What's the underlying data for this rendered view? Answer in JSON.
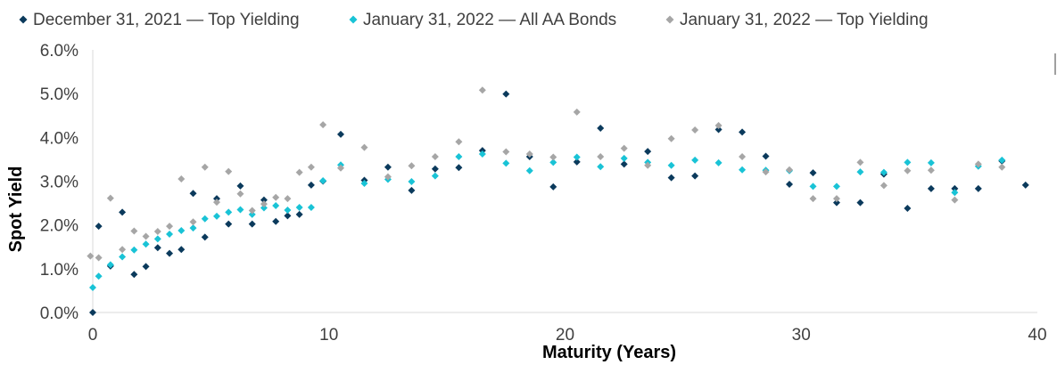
{
  "chart_data": {
    "type": "scatter",
    "title": "",
    "xlabel": "Maturity (Years)",
    "ylabel": "Spot Yield",
    "xlim": [
      0,
      40
    ],
    "ylim": [
      0,
      6
    ],
    "x_ticks": [
      "0",
      "10",
      "20",
      "30",
      "40"
    ],
    "y_ticks": [
      "0.0%",
      "1.0%",
      "2.0%",
      "3.0%",
      "4.0%",
      "5.0%",
      "6.0%"
    ],
    "grid": false,
    "legend_position": "top",
    "series": [
      {
        "name": "December 31, 2021 — Top Yielding",
        "color": "#0b3a5c",
        "points": [
          [
            0,
            0.0
          ],
          [
            0.25,
            1.97
          ],
          [
            0.75,
            1.06
          ],
          [
            1.25,
            2.29
          ],
          [
            1.75,
            0.87
          ],
          [
            2.25,
            1.05
          ],
          [
            2.75,
            1.48
          ],
          [
            3.25,
            1.35
          ],
          [
            3.75,
            1.44
          ],
          [
            4.25,
            2.72
          ],
          [
            4.75,
            1.72
          ],
          [
            5.25,
            2.6
          ],
          [
            5.75,
            2.02
          ],
          [
            6.25,
            2.89
          ],
          [
            6.75,
            2.02
          ],
          [
            7.25,
            2.57
          ],
          [
            7.75,
            2.08
          ],
          [
            8.25,
            2.21
          ],
          [
            8.75,
            2.24
          ],
          [
            9.25,
            2.91
          ],
          [
            9.75,
            3.0
          ],
          [
            10.5,
            4.07
          ],
          [
            11.5,
            3.02
          ],
          [
            12.5,
            3.32
          ],
          [
            13.5,
            2.79
          ],
          [
            14.5,
            3.28
          ],
          [
            15.5,
            3.31
          ],
          [
            16.5,
            3.7
          ],
          [
            17.5,
            4.99
          ],
          [
            18.5,
            3.56
          ],
          [
            19.5,
            2.87
          ],
          [
            20.5,
            3.44
          ],
          [
            21.5,
            4.21
          ],
          [
            22.5,
            3.39
          ],
          [
            23.5,
            3.68
          ],
          [
            24.5,
            3.08
          ],
          [
            25.5,
            3.12
          ],
          [
            26.5,
            4.18
          ],
          [
            27.5,
            4.12
          ],
          [
            28.5,
            3.57
          ],
          [
            29.5,
            2.93
          ],
          [
            30.5,
            3.19
          ],
          [
            31.5,
            2.51
          ],
          [
            32.5,
            2.51
          ],
          [
            33.5,
            3.16
          ],
          [
            34.5,
            2.38
          ],
          [
            35.5,
            2.83
          ],
          [
            36.5,
            2.83
          ],
          [
            37.5,
            2.83
          ],
          [
            38.5,
            3.46
          ],
          [
            39.5,
            2.91
          ]
        ]
      },
      {
        "name": "January 31, 2022 — All AA Bonds",
        "color": "#19c3d6",
        "points": [
          [
            0,
            0.57
          ],
          [
            0.25,
            0.83
          ],
          [
            0.75,
            1.09
          ],
          [
            1.25,
            1.27
          ],
          [
            1.75,
            1.43
          ],
          [
            2.25,
            1.56
          ],
          [
            2.75,
            1.68
          ],
          [
            3.25,
            1.79
          ],
          [
            3.75,
            1.87
          ],
          [
            4.25,
            1.93
          ],
          [
            4.75,
            2.14
          ],
          [
            5.25,
            2.2
          ],
          [
            5.75,
            2.29
          ],
          [
            6.25,
            2.35
          ],
          [
            6.75,
            2.24
          ],
          [
            7.25,
            2.39
          ],
          [
            7.75,
            2.44
          ],
          [
            8.25,
            2.34
          ],
          [
            8.75,
            2.4
          ],
          [
            9.25,
            2.4
          ],
          [
            9.75,
            3.01
          ],
          [
            10.5,
            3.37
          ],
          [
            11.5,
            2.95
          ],
          [
            12.5,
            3.04
          ],
          [
            13.5,
            2.99
          ],
          [
            14.5,
            3.12
          ],
          [
            15.5,
            3.56
          ],
          [
            16.5,
            3.62
          ],
          [
            17.5,
            3.41
          ],
          [
            18.5,
            3.24
          ],
          [
            19.5,
            3.43
          ],
          [
            20.5,
            3.55
          ],
          [
            21.5,
            3.33
          ],
          [
            22.5,
            3.52
          ],
          [
            23.5,
            3.43
          ],
          [
            24.5,
            3.36
          ],
          [
            25.5,
            3.48
          ],
          [
            26.5,
            3.42
          ],
          [
            27.5,
            3.26
          ],
          [
            28.5,
            3.25
          ],
          [
            29.5,
            3.24
          ],
          [
            30.5,
            2.88
          ],
          [
            31.5,
            2.88
          ],
          [
            32.5,
            3.21
          ],
          [
            33.5,
            3.2
          ],
          [
            34.5,
            3.43
          ],
          [
            35.5,
            3.42
          ],
          [
            36.5,
            2.74
          ],
          [
            37.5,
            3.34
          ],
          [
            38.5,
            3.48
          ]
        ]
      },
      {
        "name": "January 31, 2022 — Top Yielding",
        "color": "#a6a6a6",
        "points": [
          [
            -0.1,
            1.29
          ],
          [
            0.25,
            1.25
          ],
          [
            0.75,
            2.61
          ],
          [
            1.25,
            1.44
          ],
          [
            1.75,
            1.86
          ],
          [
            2.25,
            1.74
          ],
          [
            2.75,
            1.85
          ],
          [
            3.25,
            1.97
          ],
          [
            3.75,
            3.05
          ],
          [
            4.25,
            2.07
          ],
          [
            4.75,
            3.32
          ],
          [
            5.25,
            2.52
          ],
          [
            5.75,
            3.22
          ],
          [
            6.25,
            2.71
          ],
          [
            6.75,
            2.33
          ],
          [
            7.25,
            2.48
          ],
          [
            7.75,
            2.63
          ],
          [
            8.25,
            2.6
          ],
          [
            8.75,
            3.2
          ],
          [
            9.25,
            3.32
          ],
          [
            9.75,
            4.29
          ],
          [
            10.5,
            3.3
          ],
          [
            11.5,
            3.77
          ],
          [
            12.5,
            3.1
          ],
          [
            13.5,
            3.35
          ],
          [
            14.5,
            3.56
          ],
          [
            15.5,
            3.9
          ],
          [
            16.5,
            5.08
          ],
          [
            17.5,
            3.67
          ],
          [
            18.5,
            3.62
          ],
          [
            19.5,
            3.55
          ],
          [
            20.5,
            4.58
          ],
          [
            21.5,
            3.56
          ],
          [
            22.5,
            3.75
          ],
          [
            23.5,
            3.36
          ],
          [
            24.5,
            3.97
          ],
          [
            25.5,
            4.17
          ],
          [
            26.5,
            4.27
          ],
          [
            27.5,
            3.56
          ],
          [
            28.5,
            3.21
          ],
          [
            29.5,
            3.26
          ],
          [
            30.5,
            2.6
          ],
          [
            31.5,
            2.6
          ],
          [
            32.5,
            3.43
          ],
          [
            33.5,
            2.9
          ],
          [
            34.5,
            3.24
          ],
          [
            35.5,
            3.25
          ],
          [
            36.5,
            2.57
          ],
          [
            37.5,
            3.39
          ],
          [
            38.5,
            3.32
          ]
        ]
      }
    ]
  }
}
